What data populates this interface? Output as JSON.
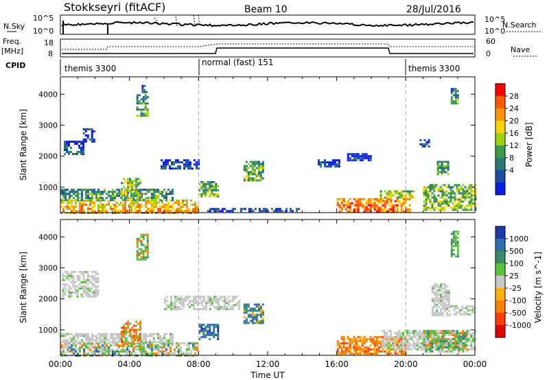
{
  "header": {
    "station": "Stokkseyri (fitACF)",
    "beam": "Beam 10",
    "date": "28/Jul/2016"
  },
  "noise_panel": {
    "left_label": "N.Sky",
    "right_label": "N.Search",
    "left_ticks": [
      "10^5",
      "10^0"
    ],
    "right_ticks": [
      "10^5",
      "10^0"
    ]
  },
  "freq_panel": {
    "left_label_1": "Freq.",
    "left_label_2": "[MHz]",
    "left_ticks": [
      "18",
      "8"
    ],
    "right_label": "Nave",
    "right_ticks": [
      "60",
      "0"
    ]
  },
  "cpid": {
    "label": "CPID",
    "segments": [
      {
        "name": "themis 3300",
        "start_hour": 0
      },
      {
        "name": "normal (fast) 151",
        "start_hour": 8
      },
      {
        "name": "themis 3300",
        "start_hour": 20
      }
    ]
  },
  "chart_data": [
    {
      "type": "heatmap",
      "quantity": "power",
      "xlabel": "",
      "ylabel": "Slant Range [km]",
      "xlim_hours": [
        0,
        24
      ],
      "ylim_km": [
        180,
        4560
      ],
      "yticks": [
        1000,
        2000,
        3000,
        4000
      ],
      "colorbar": {
        "label": "Power [dB]",
        "ticks": [
          "28",
          "24",
          "20",
          "16",
          "12",
          "8",
          "4"
        ],
        "colors": [
          "#ff0000",
          "#ff5a00",
          "#ff9600",
          "#ffd200",
          "#9ed200",
          "#3d9a4a",
          "#2a7a6e",
          "#1e4ea0",
          "#0a1ee0"
        ]
      },
      "echo_regions": [
        {
          "t0": 0.0,
          "t1": 7.9,
          "r0": 200,
          "r1": 600,
          "level": 0.72
        },
        {
          "t0": 0.0,
          "t1": 6.5,
          "r0": 600,
          "r1": 950,
          "level": 0.4
        },
        {
          "t0": 0.2,
          "t1": 1.3,
          "r0": 2100,
          "r1": 2500,
          "level": 0.2
        },
        {
          "t0": 1.3,
          "t1": 2.0,
          "r0": 2500,
          "r1": 2900,
          "level": 0.2
        },
        {
          "t0": 4.4,
          "t1": 5.0,
          "r0": 3300,
          "r1": 4000,
          "level": 0.4
        },
        {
          "t0": 4.7,
          "t1": 5.0,
          "r0": 4100,
          "r1": 4300,
          "level": 0.25
        },
        {
          "t0": 3.5,
          "t1": 4.6,
          "r0": 700,
          "r1": 1300,
          "level": 0.5
        },
        {
          "t0": 5.8,
          "t1": 8.0,
          "r0": 1600,
          "r1": 1900,
          "level": 0.15
        },
        {
          "t0": 8.0,
          "t1": 9.1,
          "r0": 700,
          "r1": 1200,
          "level": 0.45
        },
        {
          "t0": 10.6,
          "t1": 11.7,
          "r0": 1250,
          "r1": 1850,
          "level": 0.45
        },
        {
          "t0": 8.5,
          "t1": 13.8,
          "r0": 200,
          "r1": 330,
          "level": 0.2
        },
        {
          "t0": 14.9,
          "t1": 16.1,
          "r0": 1700,
          "r1": 1900,
          "level": 0.15
        },
        {
          "t0": 16.6,
          "t1": 18.0,
          "r0": 1900,
          "r1": 2100,
          "level": 0.15
        },
        {
          "t0": 16.0,
          "t1": 20.2,
          "r0": 250,
          "r1": 650,
          "level": 0.82
        },
        {
          "t0": 18.5,
          "t1": 20.5,
          "r0": 650,
          "r1": 900,
          "level": 0.55
        },
        {
          "t0": 21.0,
          "t1": 24.0,
          "r0": 250,
          "r1": 1100,
          "level": 0.5
        },
        {
          "t0": 21.8,
          "t1": 22.5,
          "r0": 1450,
          "r1": 1850,
          "level": 0.4
        },
        {
          "t0": 20.8,
          "t1": 21.3,
          "r0": 2300,
          "r1": 2550,
          "level": 0.2
        },
        {
          "t0": 22.6,
          "t1": 23.0,
          "r0": 3700,
          "r1": 4200,
          "level": 0.35
        }
      ]
    },
    {
      "type": "heatmap",
      "quantity": "velocity",
      "xlabel": "Time UT",
      "ylabel": "Slant Range [km]",
      "xlim_hours": [
        0,
        24
      ],
      "ylim_km": [
        180,
        4560
      ],
      "yticks": [
        1000,
        2000,
        3000,
        4000
      ],
      "xticks": [
        "00:00",
        "04:00",
        "08:00",
        "12:00",
        "16:00",
        "20:00",
        "00:00"
      ],
      "colorbar": {
        "label": "Velocity [m s^-1]",
        "ticks": [
          "1000",
          "500",
          "100",
          "25",
          "-25",
          "-100",
          "-500",
          "-1000"
        ],
        "colors": [
          "#1e3aa8",
          "#2e6fb0",
          "#3c8a6a",
          "#5cc040",
          "#c8c8c8",
          "#ffb000",
          "#ff8000",
          "#ff4000",
          "#e00000"
        ]
      },
      "echo_regions": [
        {
          "t0": 0.0,
          "t1": 7.9,
          "r0": 200,
          "r1": 600,
          "class": "mixed-green-grey"
        },
        {
          "t0": 0.0,
          "t1": 6.5,
          "r0": 600,
          "r1": 900,
          "class": "grey"
        },
        {
          "t0": 0.1,
          "t1": 2.2,
          "r0": 2100,
          "r1": 2900,
          "class": "grey"
        },
        {
          "t0": 4.4,
          "t1": 5.0,
          "r0": 3300,
          "r1": 4100,
          "class": "green-orange"
        },
        {
          "t0": 3.5,
          "t1": 4.6,
          "r0": 500,
          "r1": 1300,
          "class": "orange-green"
        },
        {
          "t0": 8.0,
          "t1": 9.1,
          "r0": 700,
          "r1": 1200,
          "class": "blue"
        },
        {
          "t0": 10.6,
          "t1": 11.7,
          "r0": 1250,
          "r1": 1850,
          "class": "blue-green"
        },
        {
          "t0": 6.0,
          "t1": 10.3,
          "r0": 1700,
          "r1": 2100,
          "class": "grey"
        },
        {
          "t0": 16.0,
          "t1": 20.0,
          "r0": 250,
          "r1": 800,
          "class": "orange"
        },
        {
          "t0": 18.6,
          "t1": 24.0,
          "r0": 400,
          "r1": 1000,
          "class": "grey"
        },
        {
          "t0": 21.5,
          "t1": 22.5,
          "r0": 1500,
          "r1": 2500,
          "class": "grey"
        },
        {
          "t0": 22.5,
          "t1": 24.0,
          "r0": 1500,
          "r1": 1800,
          "class": "grey"
        },
        {
          "t0": 22.6,
          "t1": 23.0,
          "r0": 3400,
          "r1": 4200,
          "class": "green"
        },
        {
          "t0": 21.0,
          "t1": 23.6,
          "r0": 300,
          "r1": 1000,
          "class": "mixed-green-orange"
        }
      ]
    }
  ]
}
